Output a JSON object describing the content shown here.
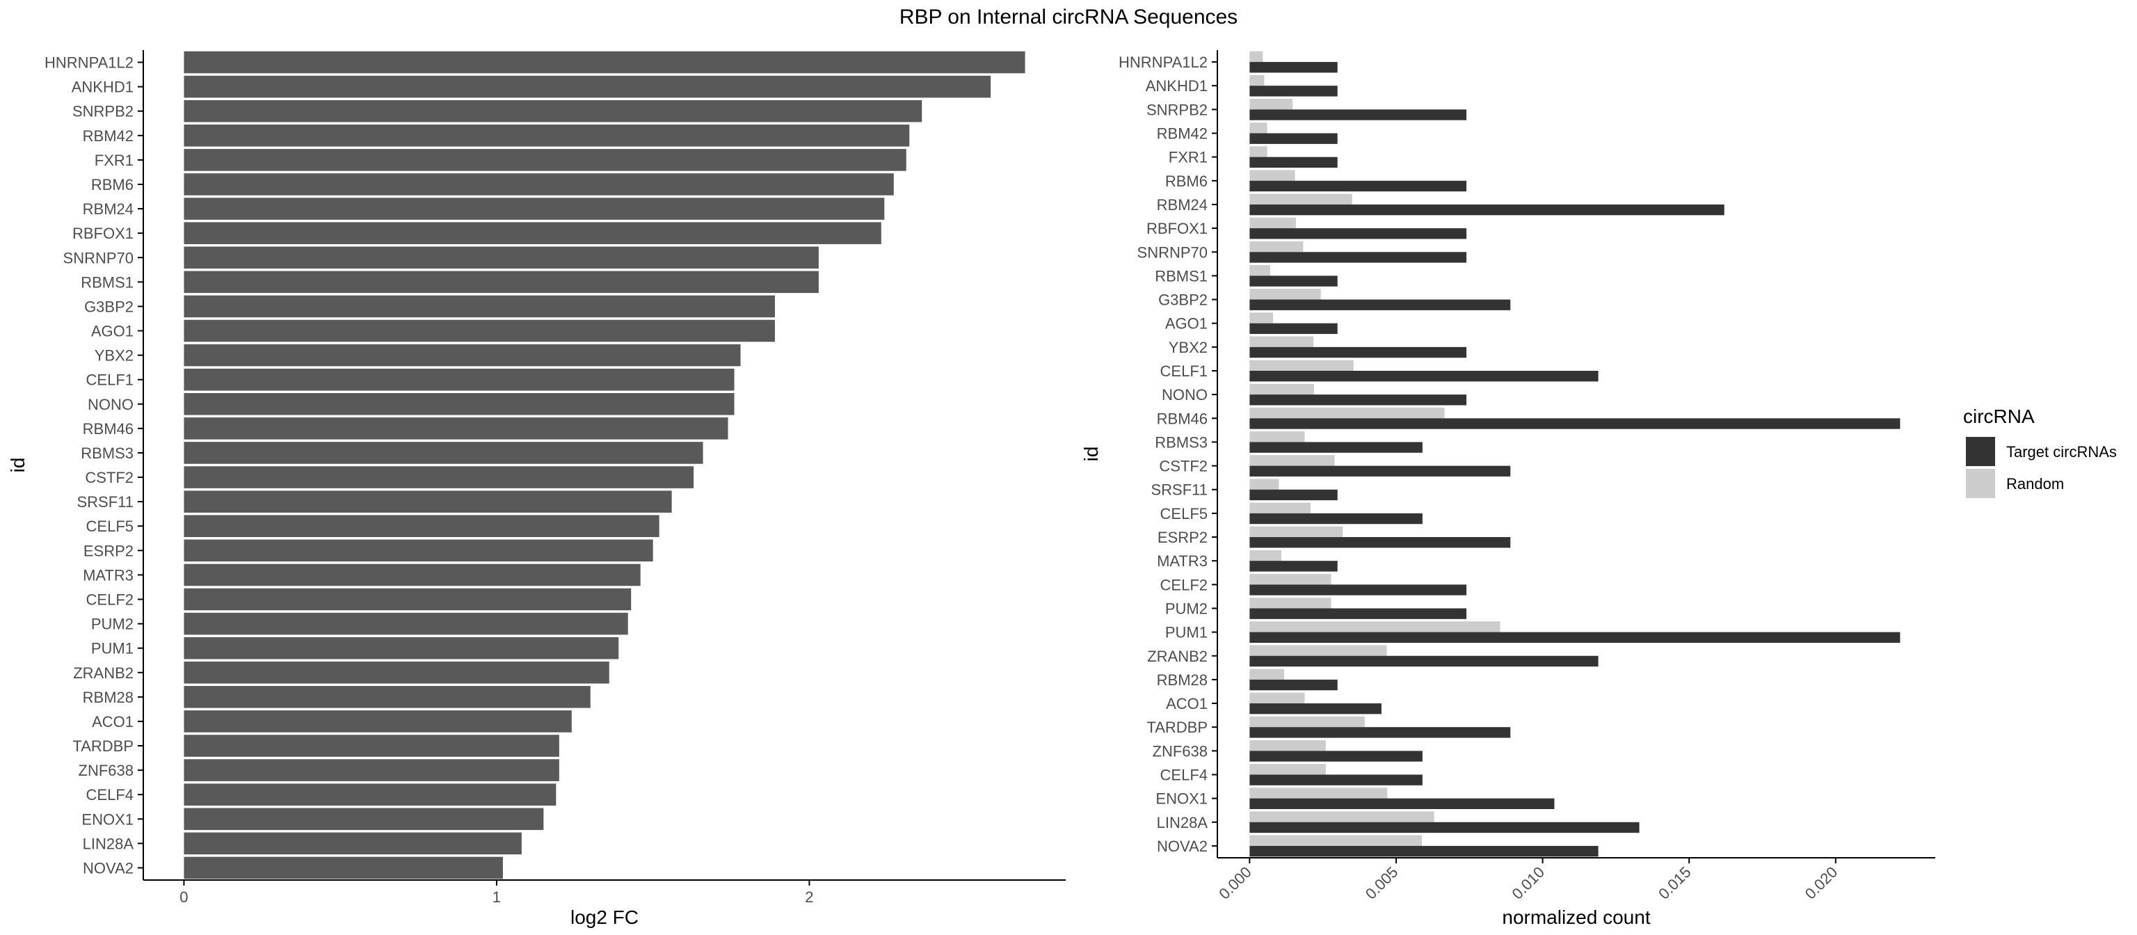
{
  "title": "RBP on Internal circRNA Sequences",
  "colors": {
    "left_bar": "#595959",
    "target": "#333333",
    "random": "#cccccc",
    "axis": "#000000",
    "tick_text": "#4d4d4d"
  },
  "chart_data": [
    {
      "type": "bar",
      "orientation": "horizontal",
      "categories": [
        "HNRNPA1L2",
        "ANKHD1",
        "SNRPB2",
        "RBM42",
        "FXR1",
        "RBM6",
        "RBM24",
        "RBFOX1",
        "SNRNP70",
        "RBMS1",
        "G3BP2",
        "AGO1",
        "YBX2",
        "CELF1",
        "NONO",
        "RBM46",
        "RBMS3",
        "CSTF2",
        "SRSF11",
        "CELF5",
        "ESRP2",
        "MATR3",
        "CELF2",
        "PUM2",
        "PUM1",
        "ZRANB2",
        "RBM28",
        "ACO1",
        "TARDBP",
        "ZNF638",
        "CELF4",
        "ENOX1",
        "LIN28A",
        "NOVA2"
      ],
      "values": [
        2.69,
        2.58,
        2.36,
        2.32,
        2.31,
        2.27,
        2.24,
        2.23,
        2.03,
        2.03,
        1.89,
        1.89,
        1.78,
        1.76,
        1.76,
        1.74,
        1.66,
        1.63,
        1.56,
        1.52,
        1.5,
        1.46,
        1.43,
        1.42,
        1.39,
        1.36,
        1.3,
        1.24,
        1.2,
        1.2,
        1.19,
        1.15,
        1.08,
        1.02
      ],
      "xlabel": "log2 FC",
      "ylabel": "id",
      "xlim": [
        -0.13,
        2.82
      ],
      "xticks": [
        "0",
        "1",
        "2"
      ],
      "grid": false
    },
    {
      "type": "bar",
      "orientation": "horizontal",
      "grouped": true,
      "categories": [
        "HNRNPA1L2",
        "ANKHD1",
        "SNRPB2",
        "RBM42",
        "FXR1",
        "RBM6",
        "RBM24",
        "RBFOX1",
        "SNRNP70",
        "RBMS1",
        "G3BP2",
        "AGO1",
        "YBX2",
        "CELF1",
        "NONO",
        "RBM46",
        "RBMS3",
        "CSTF2",
        "SRSF11",
        "CELF5",
        "ESRP2",
        "MATR3",
        "CELF2",
        "PUM2",
        "PUM1",
        "ZRANB2",
        "RBM28",
        "ACO1",
        "TARDBP",
        "ZNF638",
        "CELF4",
        "ENOX1",
        "LIN28A",
        "NOVA2"
      ],
      "series": [
        {
          "name": "Target circRNAs",
          "values": [
            0.003,
            0.003,
            0.0074,
            0.003,
            0.003,
            0.0074,
            0.0162,
            0.0074,
            0.0074,
            0.003,
            0.0089,
            0.003,
            0.0074,
            0.0119,
            0.0074,
            0.0222,
            0.0059,
            0.0089,
            0.003,
            0.0059,
            0.0089,
            0.003,
            0.0074,
            0.0074,
            0.0222,
            0.0119,
            0.003,
            0.0045,
            0.0089,
            0.0059,
            0.0059,
            0.0104,
            0.0133,
            0.0119
          ]
        },
        {
          "name": "Random",
          "values": [
            0.00045,
            0.0005,
            0.00147,
            0.0006,
            0.0006,
            0.00155,
            0.0035,
            0.00158,
            0.00183,
            0.0007,
            0.00243,
            0.0008,
            0.00218,
            0.00355,
            0.0022,
            0.00665,
            0.00188,
            0.0029,
            0.001,
            0.00208,
            0.00318,
            0.00108,
            0.00278,
            0.00278,
            0.00855,
            0.00468,
            0.00118,
            0.00188,
            0.00393,
            0.0026,
            0.0026,
            0.0047,
            0.0063,
            0.00588
          ]
        }
      ],
      "xlabel": "normalized count",
      "ylabel": "id",
      "xlim": [
        -0.0011,
        0.0234
      ],
      "xticks": [
        "0.000",
        "0.005",
        "0.010",
        "0.015",
        "0.020"
      ],
      "grid": false,
      "legend": {
        "title": "circRNA",
        "placement": "right",
        "entries": [
          "Target circRNAs",
          "Random"
        ]
      }
    }
  ]
}
